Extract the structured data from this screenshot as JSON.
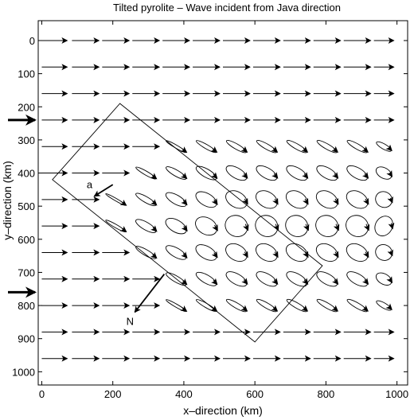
{
  "chart_data": {
    "type": "vector-field",
    "title": "Tilted pyrolite – Wave incident from Java direction",
    "xlabel": "x–direction (km)",
    "ylabel": "y–direction (km)",
    "xlim": [
      -10,
      1030
    ],
    "ylim": [
      1040,
      -60
    ],
    "x_inverted": false,
    "y_inverted": true,
    "xticks": [
      0,
      200,
      400,
      600,
      800,
      1000
    ],
    "yticks": [
      0,
      100,
      200,
      300,
      400,
      500,
      600,
      700,
      800,
      900,
      1000
    ],
    "grid": false,
    "legend": "none",
    "incident_arrow_y": [
      240,
      760
    ],
    "box_polygon": [
      [
        220,
        190
      ],
      [
        790,
        680
      ],
      [
        600,
        910
      ],
      [
        30,
        420
      ]
    ],
    "annotations": [
      {
        "label": "a",
        "x0": 200,
        "y0": 435,
        "x1": 148,
        "y1": 470
      },
      {
        "label": "N",
        "x0": 345,
        "y0": 705,
        "x1": 262,
        "y1": 820
      }
    ],
    "rows": [
      0,
      80,
      160,
      240,
      320,
      400,
      480,
      560,
      640,
      720,
      800,
      880,
      960
    ],
    "cols": [
      0,
      85,
      170,
      255,
      340,
      425,
      510,
      595,
      680,
      765,
      850,
      935,
      1000
    ],
    "ellipse_rule": "width minimal outside box, growing toward the center-right region between y 300 and 800"
  }
}
